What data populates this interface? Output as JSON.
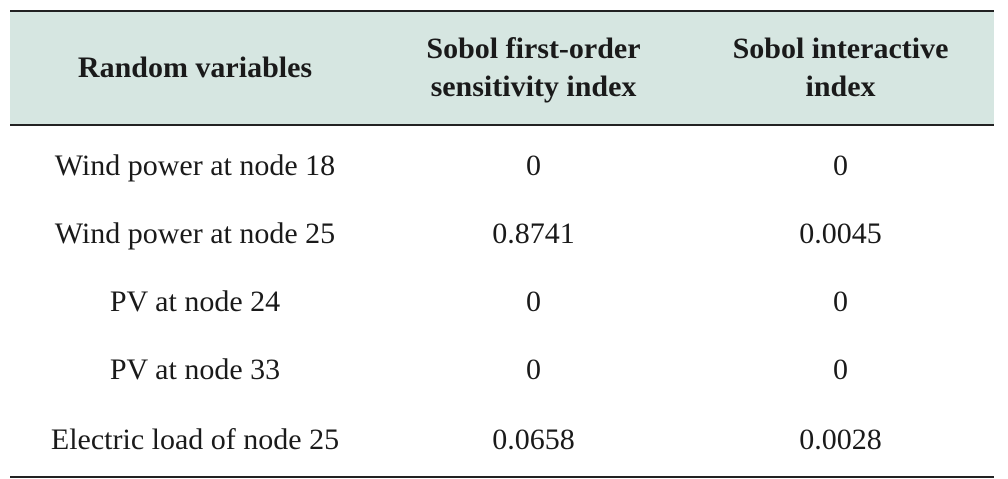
{
  "table": {
    "headers": [
      {
        "lines": [
          "Random variables"
        ]
      },
      {
        "lines": [
          "Sobol first-order",
          "sensitivity index"
        ]
      },
      {
        "lines": [
          "Sobol interactive",
          "index"
        ]
      }
    ],
    "rows": [
      [
        "Wind power at node 18",
        "0",
        "0"
      ],
      [
        "Wind power at node 25",
        "0.8741",
        "0.0045"
      ],
      [
        "PV at node 24",
        "0",
        "0"
      ],
      [
        "PV at node 33",
        "0",
        "0"
      ],
      [
        "Electric load of node 25",
        "0.0658",
        "0.0028"
      ]
    ]
  },
  "colors": {
    "header_bg": "#d6e6e1",
    "rule": "#222222"
  }
}
